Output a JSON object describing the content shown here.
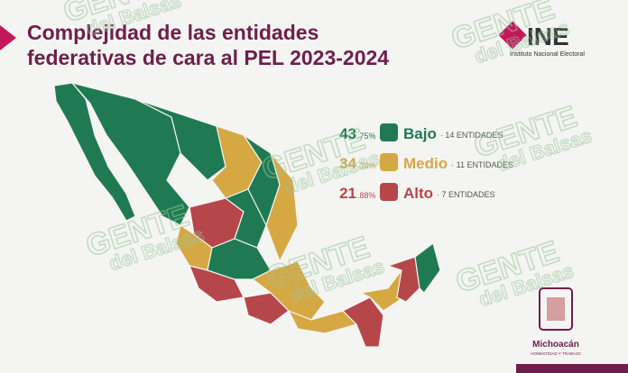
{
  "header": {
    "title_lines": [
      "Complejidad de las entidades",
      "federativas de cara al PEL 2023-2024"
    ]
  },
  "logo": {
    "name": "INE",
    "subtitle": "Instituto Nacional Electoral"
  },
  "legend": [
    {
      "percent_whole": "43",
      "percent_fraction": ".75%",
      "label": "Bajo",
      "detail": "· 14 ENTIDADES",
      "color": "#1f7a53"
    },
    {
      "percent_whole": "34",
      "percent_fraction": ".38%",
      "label": "Medio",
      "detail": "· 11 ENTIDADES",
      "color": "#d6a843"
    },
    {
      "percent_whole": "21",
      "percent_fraction": ".88%",
      "label": "Alto",
      "detail": "· 7 ENTIDADES",
      "color": "#b5474b"
    }
  ],
  "watermark": {
    "line1": "GENTE",
    "line2": "del Balsas"
  },
  "footer": {
    "state": "Michoacán",
    "motto": "HONESTIDAD Y TRABAJO"
  }
}
